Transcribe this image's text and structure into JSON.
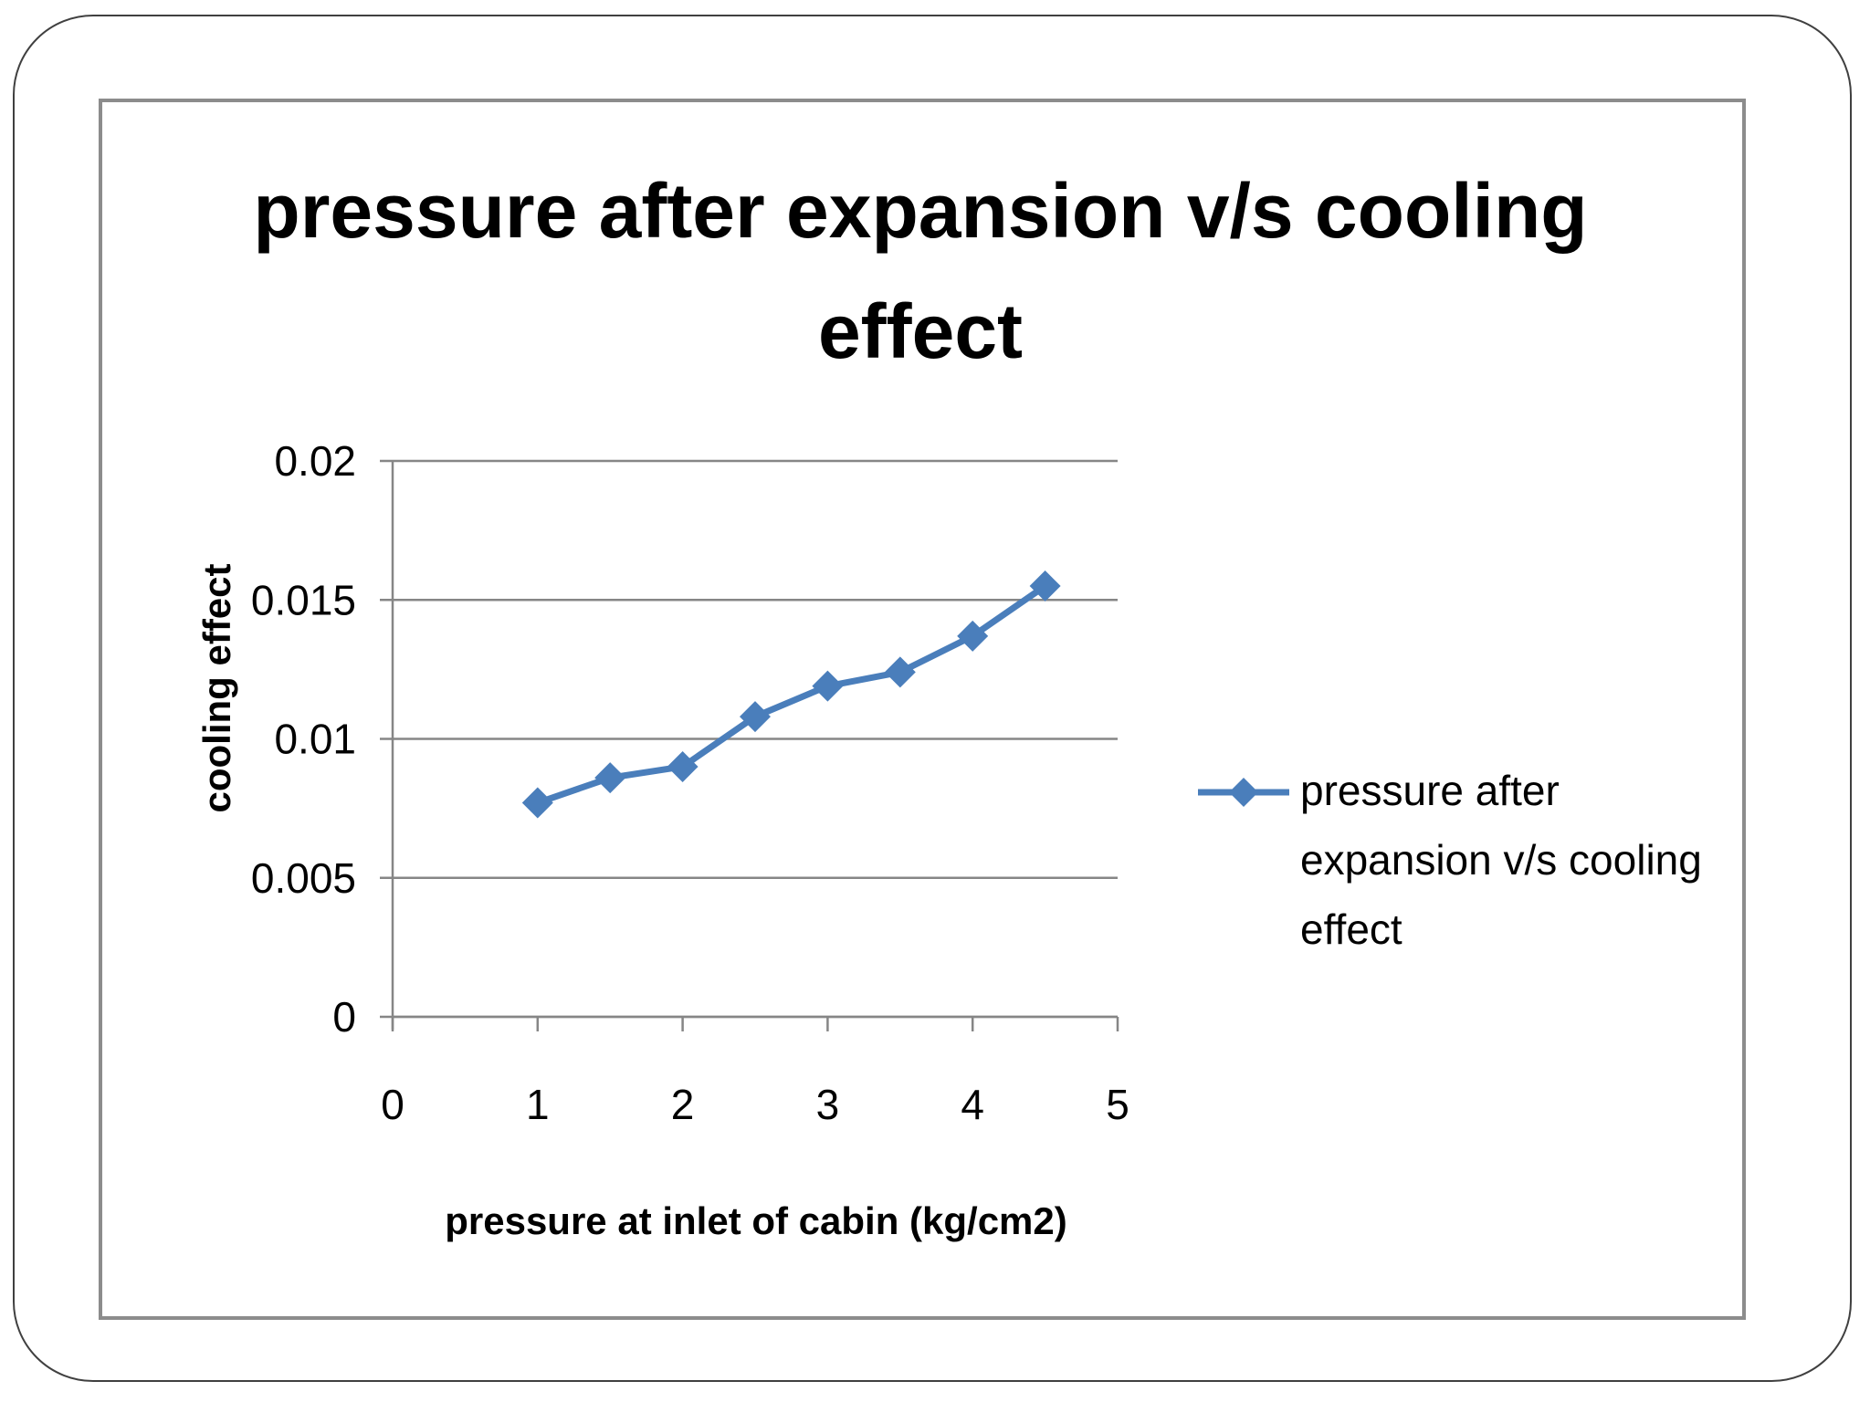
{
  "chart_data": {
    "type": "line",
    "title_lines": [
      "pressure after expansion v/s cooling",
      "effect"
    ],
    "xlabel": "pressure at inlet of cabin (kg/cm2)",
    "ylabel": "cooling effect",
    "xlim": [
      0,
      5
    ],
    "ylim": [
      0,
      0.02
    ],
    "x_ticks": [
      "0",
      "1",
      "2",
      "3",
      "4",
      "5"
    ],
    "y_ticks": [
      "0",
      "0.005",
      "0.01",
      "0.015",
      "0.02"
    ],
    "grid": "horizontal",
    "legend_position": "right",
    "series": [
      {
        "name": "pressure after expansion v/s cooling effect",
        "legend_lines": [
          "pressure after",
          "expansion v/s cooling",
          "effect"
        ],
        "color": "#4a7ebb",
        "marker": "diamond",
        "x": [
          1,
          1.5,
          2,
          2.5,
          3,
          3.5,
          4,
          4.5
        ],
        "y": [
          0.0077,
          0.0086,
          0.009,
          0.0108,
          0.0119,
          0.0124,
          0.0137,
          0.0155
        ]
      }
    ]
  },
  "colors": {
    "series": "#4a7ebb",
    "gridline": "#868686",
    "frame": "#8c8c8c",
    "text": "#000000"
  }
}
